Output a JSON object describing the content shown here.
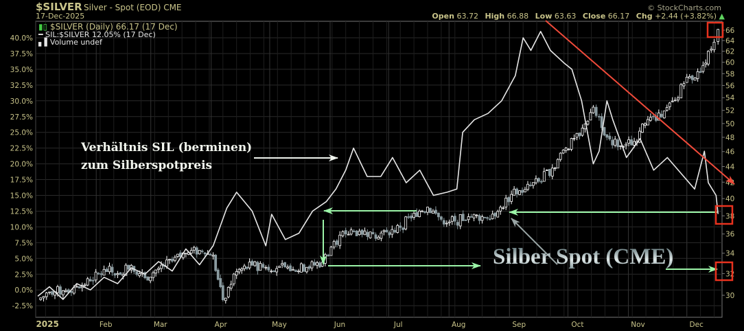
{
  "header": {
    "symbol": "$SILVER",
    "name": "Silver - Spot (EOD) CME",
    "date": "17-Dec-2025",
    "credit": "© StockCharts.com",
    "ohlc": {
      "open_label": "Open",
      "open": "63.72",
      "high_label": "High",
      "high": "66.88",
      "low_label": "Low",
      "low": "63.63",
      "close_label": "Close",
      "close": "66.17",
      "chg_label": "Chg",
      "chg": "+2.44 (+3.82%)"
    }
  },
  "legend": {
    "main": "$SILVER (Daily) 66.17 (17 Dec)",
    "ratio": "SIL:$SILVER 12.05% (17 Dec)",
    "volume": "Volume undef"
  },
  "annotations": {
    "ratio_text_line1": "Verhältnis SIL (berminen)",
    "ratio_text_line2": "zum Silberspotpreis",
    "spot_text": "Silber Spot (CME)"
  },
  "colors": {
    "background": "#000000",
    "grid": "#2a2a2a",
    "axis_text": "#c9c48a",
    "candle_up": "#ffffff",
    "candle_down": "#8a9ba0",
    "ratio_line": "#e8e8e8",
    "green_arrow": "#9cf5a8",
    "red_arrow": "#f04a3a",
    "highlight_box": "#e8321e"
  },
  "chart_data": {
    "type": "candlestick+line",
    "x_year_label": "2025",
    "x_ticks": [
      "2025",
      "Feb",
      "Mar",
      "Apr",
      "May",
      "Jun",
      "Jul",
      "Aug",
      "Sep",
      "Oct",
      "Nov",
      "Dec"
    ],
    "left_axis": {
      "unit": "%",
      "ticks": [
        "40.0%",
        "37.5%",
        "35.0%",
        "32.5%",
        "30.0%",
        "27.5%",
        "25.0%",
        "22.5%",
        "20.0%",
        "17.5%",
        "15.0%",
        "12.5%",
        "10.0%",
        "7.5%",
        "5.0%",
        "2.5%",
        "0.0%",
        "-2.5%"
      ],
      "range": [
        -3.5,
        42
      ]
    },
    "right_axis": {
      "scale": "log",
      "ticks": [
        "66",
        "64",
        "62",
        "60",
        "58",
        "56",
        "54",
        "52",
        "50",
        "48",
        "46",
        "44",
        "42",
        "40",
        "38",
        "36",
        "34",
        "32",
        "30"
      ],
      "range": [
        29,
        67
      ],
      "highlighted": [
        "66",
        "38",
        "32"
      ]
    },
    "grid": true,
    "series": [
      {
        "name": "$SILVER",
        "type": "candlestick",
        "axis": "right",
        "points": [
          [
            "2025-01-02",
            29.6
          ],
          [
            "2025-01-08",
            30.3
          ],
          [
            "2025-01-15",
            30.4
          ],
          [
            "2025-01-22",
            30.8
          ],
          [
            "2025-01-29",
            31.3
          ],
          [
            "2025-02-05",
            32.4
          ],
          [
            "2025-02-12",
            32.0
          ],
          [
            "2025-02-19",
            32.8
          ],
          [
            "2025-02-26",
            31.6
          ],
          [
            "2025-03-05",
            32.5
          ],
          [
            "2025-03-12",
            33.2
          ],
          [
            "2025-03-19",
            34.0
          ],
          [
            "2025-03-26",
            34.3
          ],
          [
            "2025-04-02",
            33.8
          ],
          [
            "2025-04-07",
            29.6
          ],
          [
            "2025-04-14",
            32.2
          ],
          [
            "2025-04-22",
            32.8
          ],
          [
            "2025-04-29",
            32.6
          ],
          [
            "2025-05-06",
            32.7
          ],
          [
            "2025-05-13",
            32.4
          ],
          [
            "2025-05-20",
            32.6
          ],
          [
            "2025-05-28",
            33.1
          ],
          [
            "2025-06-03",
            35.2
          ],
          [
            "2025-06-09",
            36.0
          ],
          [
            "2025-06-16",
            36.3
          ],
          [
            "2025-06-23",
            36.0
          ],
          [
            "2025-06-30",
            36.2
          ],
          [
            "2025-07-07",
            36.7
          ],
          [
            "2025-07-14",
            38.3
          ],
          [
            "2025-07-21",
            39.0
          ],
          [
            "2025-07-28",
            37.6
          ],
          [
            "2025-08-04",
            37.4
          ],
          [
            "2025-08-11",
            37.9
          ],
          [
            "2025-08-18",
            37.9
          ],
          [
            "2025-08-26",
            38.5
          ],
          [
            "2025-09-02",
            40.5
          ],
          [
            "2025-09-09",
            41.1
          ],
          [
            "2025-09-16",
            42.1
          ],
          [
            "2025-09-23",
            43.8
          ],
          [
            "2025-09-30",
            46.5
          ],
          [
            "2025-10-07",
            48.2
          ],
          [
            "2025-10-14",
            52.5
          ],
          [
            "2025-10-17",
            51.0
          ],
          [
            "2025-10-21",
            48.0
          ],
          [
            "2025-10-28",
            46.8
          ],
          [
            "2025-11-04",
            47.4
          ],
          [
            "2025-11-11",
            50.6
          ],
          [
            "2025-11-18",
            51.0
          ],
          [
            "2025-11-25",
            53.6
          ],
          [
            "2025-12-01",
            57.4
          ],
          [
            "2025-12-08",
            58.2
          ],
          [
            "2025-12-12",
            62.0
          ],
          [
            "2025-12-15",
            63.7
          ],
          [
            "2025-12-17",
            66.17
          ]
        ]
      },
      {
        "name": "SIL:$SILVER",
        "type": "line",
        "axis": "left",
        "points": [
          [
            "2025-01-02",
            -1.0
          ],
          [
            "2025-01-08",
            0.5
          ],
          [
            "2025-01-15",
            -1.5
          ],
          [
            "2025-01-22",
            1.0
          ],
          [
            "2025-01-29",
            0.0
          ],
          [
            "2025-02-05",
            2.0
          ],
          [
            "2025-02-12",
            1.0
          ],
          [
            "2025-02-19",
            3.5
          ],
          [
            "2025-02-26",
            2.5
          ],
          [
            "2025-03-05",
            4.5
          ],
          [
            "2025-03-12",
            3.0
          ],
          [
            "2025-03-19",
            6.5
          ],
          [
            "2025-03-26",
            4.0
          ],
          [
            "2025-04-02",
            7.0
          ],
          [
            "2025-04-09",
            13.0
          ],
          [
            "2025-04-14",
            15.5
          ],
          [
            "2025-04-22",
            12.5
          ],
          [
            "2025-04-29",
            7.0
          ],
          [
            "2025-05-02",
            12.0
          ],
          [
            "2025-05-09",
            8.0
          ],
          [
            "2025-05-16",
            9.0
          ],
          [
            "2025-05-23",
            12.5
          ],
          [
            "2025-05-30",
            14.0
          ],
          [
            "2025-06-04",
            16.0
          ],
          [
            "2025-06-09",
            19.0
          ],
          [
            "2025-06-13",
            22.5
          ],
          [
            "2025-06-20",
            18.0
          ],
          [
            "2025-06-27",
            18.0
          ],
          [
            "2025-07-03",
            21.0
          ],
          [
            "2025-07-10",
            17.0
          ],
          [
            "2025-07-17",
            19.0
          ],
          [
            "2025-07-24",
            15.0
          ],
          [
            "2025-07-31",
            15.5
          ],
          [
            "2025-08-05",
            16.0
          ],
          [
            "2025-08-08",
            25.0
          ],
          [
            "2025-08-14",
            27.0
          ],
          [
            "2025-08-21",
            28.0
          ],
          [
            "2025-08-28",
            30.0
          ],
          [
            "2025-09-04",
            34.0
          ],
          [
            "2025-09-08",
            40.0
          ],
          [
            "2025-09-12",
            38.0
          ],
          [
            "2025-09-17",
            41.0
          ],
          [
            "2025-09-22",
            38.0
          ],
          [
            "2025-09-29",
            36.0
          ],
          [
            "2025-10-03",
            35.0
          ],
          [
            "2025-10-08",
            30.0
          ],
          [
            "2025-10-14",
            20.0
          ],
          [
            "2025-10-17",
            22.0
          ],
          [
            "2025-10-21",
            30.0
          ],
          [
            "2025-10-24",
            27.0
          ],
          [
            "2025-10-31",
            21.0
          ],
          [
            "2025-11-07",
            24.0
          ],
          [
            "2025-11-14",
            19.0
          ],
          [
            "2025-11-21",
            21.0
          ],
          [
            "2025-11-28",
            18.5
          ],
          [
            "2025-12-05",
            16.0
          ],
          [
            "2025-12-10",
            22.0
          ],
          [
            "2025-12-12",
            17.0
          ],
          [
            "2025-12-16",
            15.0
          ],
          [
            "2025-12-17",
            12.05
          ]
        ]
      }
    ]
  }
}
